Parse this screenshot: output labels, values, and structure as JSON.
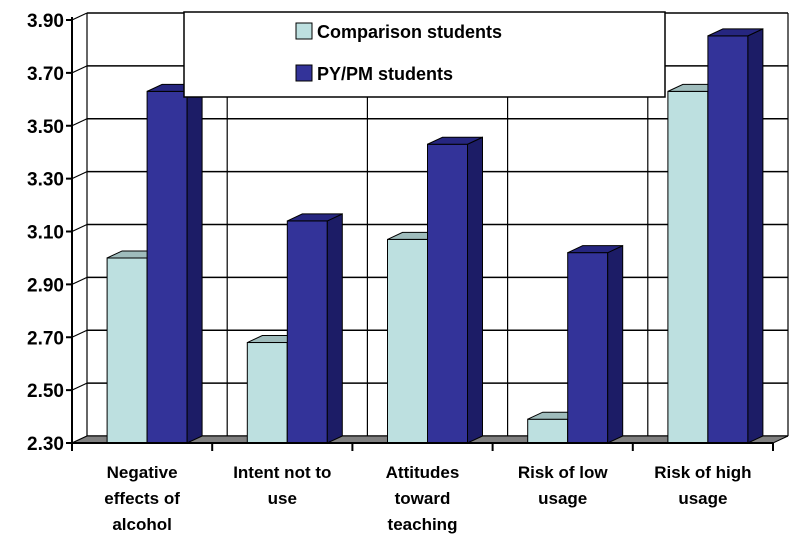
{
  "chart_data": {
    "type": "bar",
    "categories": [
      [
        "Negative",
        "effects of",
        "alcohol"
      ],
      [
        "Intent not to",
        "use"
      ],
      [
        "Attitudes",
        "toward",
        "teaching"
      ],
      [
        "Risk of low",
        "usage"
      ],
      [
        "Risk of high",
        "usage"
      ]
    ],
    "series": [
      {
        "name": "Comparison students",
        "values": [
          3.0,
          2.68,
          3.07,
          2.39,
          3.63
        ]
      },
      {
        "name": "PY/PM students",
        "values": [
          3.63,
          3.14,
          3.43,
          3.02,
          3.84
        ]
      }
    ],
    "ylim": [
      2.3,
      3.9
    ],
    "yticks": [
      "2.30",
      "2.50",
      "2.70",
      "2.90",
      "3.10",
      "3.30",
      "3.50",
      "3.70",
      "3.90"
    ],
    "legend_position": "top",
    "grid": true,
    "three_d": true,
    "title": "",
    "xlabel": "",
    "ylabel": ""
  },
  "colors": {
    "comparison_front": "#bde0e0",
    "comparison_side": "#7e9b9b",
    "comparison_top": "#9fbcbc",
    "pypm_front": "#333399",
    "pypm_side": "#1c1c66",
    "pypm_top": "#262680",
    "floor": "#808080"
  }
}
